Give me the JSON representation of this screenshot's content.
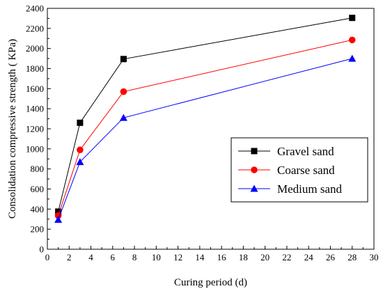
{
  "chart_data": {
    "type": "line",
    "title": "",
    "xlabel": "Curing period  (d)",
    "ylabel": "Consolidation compressive strength ( KPa)",
    "xlim": [
      0,
      30
    ],
    "ylim": [
      0,
      2400
    ],
    "xticks": [
      0,
      2,
      4,
      6,
      8,
      10,
      12,
      14,
      16,
      18,
      20,
      22,
      24,
      26,
      28,
      30
    ],
    "yticks": [
      0,
      200,
      400,
      600,
      800,
      1000,
      1200,
      1400,
      1600,
      1800,
      2000,
      2200,
      2400
    ],
    "grid": false,
    "legend_position": "bottom-right",
    "series": [
      {
        "name": "Gravel sand",
        "marker": "square",
        "color": "#000000",
        "x": [
          1,
          3,
          7,
          28
        ],
        "y": [
          375,
          1260,
          1895,
          2305
        ]
      },
      {
        "name": "Coarse sand",
        "marker": "circle",
        "color": "#ff0000",
        "x": [
          1,
          3,
          7,
          28
        ],
        "y": [
          335,
          990,
          1570,
          2085
        ]
      },
      {
        "name": "Medium sand",
        "marker": "triangle",
        "color": "#0000ff",
        "x": [
          1,
          3,
          7,
          28
        ],
        "y": [
          295,
          870,
          1310,
          1900
        ]
      }
    ]
  }
}
